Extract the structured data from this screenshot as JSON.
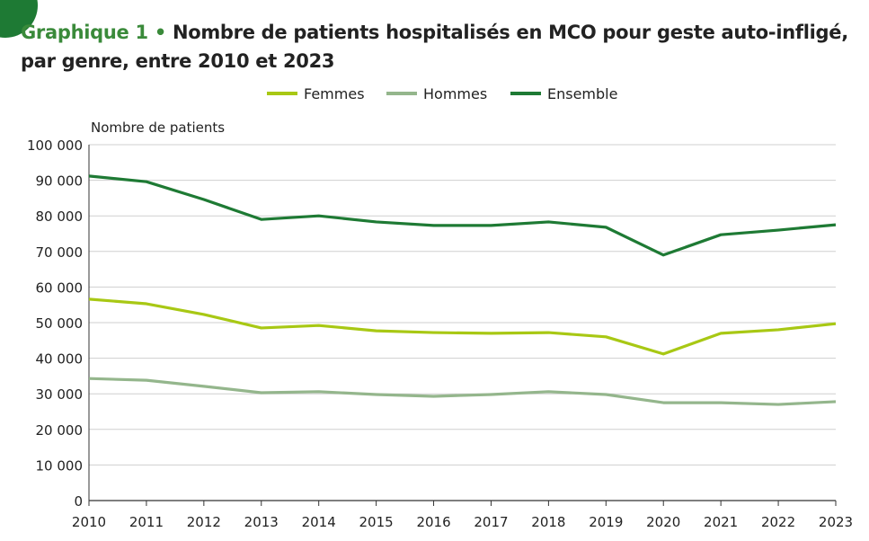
{
  "header": {
    "label": "Graphique 1",
    "separator": "•",
    "title_line1": "Nombre de patients hospitalisés en MCO pour geste auto-infligé,",
    "title_line2": "par genre, entre 2010 et 2023"
  },
  "colors": {
    "Femmes": "#a8c814",
    "Hommes": "#94b68c",
    "Ensemble": "#1e7a34",
    "accent": "#3a8a3a"
  },
  "chart_data": {
    "type": "line",
    "title": "Nombre de patients hospitalisés en MCO pour geste auto-infligé, par genre, entre 2010 et 2023",
    "ylabel": "Nombre de patients",
    "xlabel": "",
    "ylim": [
      0,
      100000
    ],
    "yticks": [
      0,
      10000,
      20000,
      30000,
      40000,
      50000,
      60000,
      70000,
      80000,
      90000,
      100000
    ],
    "ytick_labels": [
      "0",
      "10 000",
      "20 000",
      "30 000",
      "40 000",
      "50 000",
      "60 000",
      "70 000",
      "80 000",
      "90 000",
      "100 000"
    ],
    "x": [
      "2010",
      "2011",
      "2012",
      "2013",
      "2014",
      "2015",
      "2016",
      "2017",
      "2018",
      "2019",
      "2020",
      "2021",
      "2022",
      "2023"
    ],
    "grid": true,
    "legend_position": "top-center",
    "series": [
      {
        "name": "Femmes",
        "values": [
          56600,
          55300,
          52300,
          48500,
          49200,
          47700,
          47200,
          47000,
          47200,
          46000,
          41200,
          47000,
          48000,
          49700
        ]
      },
      {
        "name": "Hommes",
        "values": [
          34300,
          33800,
          32100,
          30300,
          30600,
          29800,
          29300,
          29800,
          30600,
          29800,
          27500,
          27500,
          27000,
          27800
        ]
      },
      {
        "name": "Ensemble",
        "values": [
          91200,
          89600,
          84600,
          79000,
          80000,
          78300,
          77300,
          77300,
          78300,
          76800,
          69000,
          74700,
          76000,
          77500
        ]
      }
    ]
  }
}
